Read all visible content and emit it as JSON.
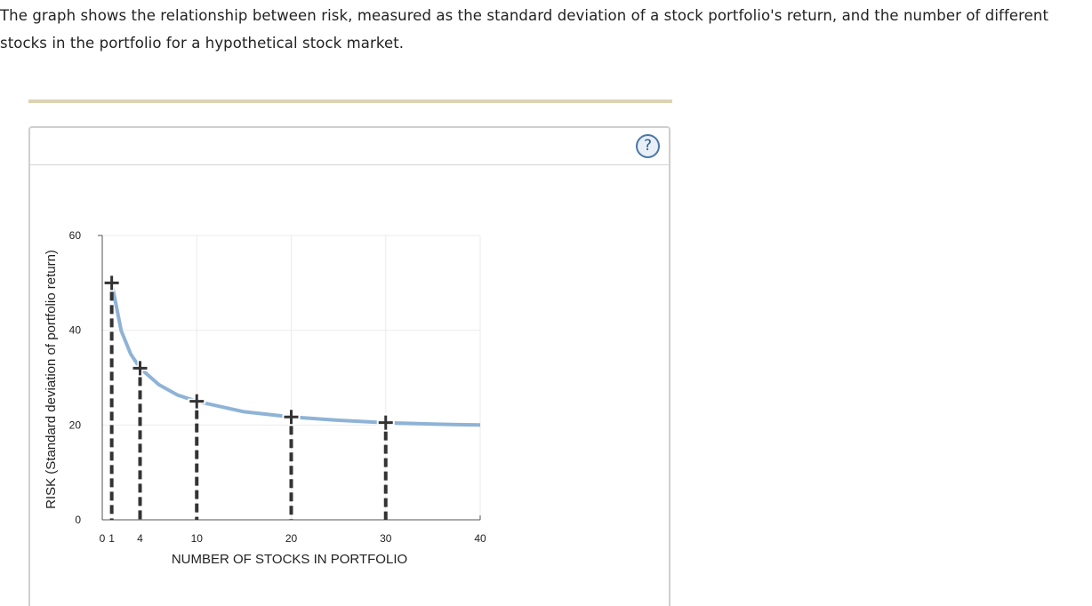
{
  "intro_text": "The graph shows the relationship between risk, measured as the standard deviation of a stock portfolio's return, and the number of different stocks in the portfolio for a hypothetical stock market.",
  "panel": {
    "help_label": "?",
    "help_icon": "question-mark-icon"
  },
  "colors": {
    "curve": "#8fb3d6",
    "markers": "#333333",
    "divider": "#dcd3b2",
    "help_border": "#4a76a8"
  },
  "chart_data": {
    "type": "line",
    "title": "",
    "xlabel": "NUMBER OF STOCKS IN PORTFOLIO",
    "ylabel": "RISK (Standard deviation of portfolio return)",
    "xlim": [
      0,
      40
    ],
    "ylim": [
      0,
      60
    ],
    "x_ticks": [
      "0",
      "1",
      "4",
      "10",
      "20",
      "30",
      "40"
    ],
    "y_ticks": [
      "0",
      "20",
      "40",
      "60"
    ],
    "grid": true,
    "series": [
      {
        "style": "solid curve",
        "x": [
          1,
          2,
          3,
          4,
          6,
          8,
          10,
          15,
          20,
          25,
          30,
          35,
          40
        ],
        "y": [
          50,
          39.9,
          35,
          32,
          28.5,
          26.3,
          25,
          22.8,
          21.7,
          21,
          20.5,
          20.2,
          20
        ]
      }
    ],
    "points": [
      {
        "x": 1,
        "y": 50
      },
      {
        "x": 4,
        "y": 32
      },
      {
        "x": 10,
        "y": 25
      },
      {
        "x": 20,
        "y": 21.7
      },
      {
        "x": 30,
        "y": 20.5
      }
    ]
  }
}
